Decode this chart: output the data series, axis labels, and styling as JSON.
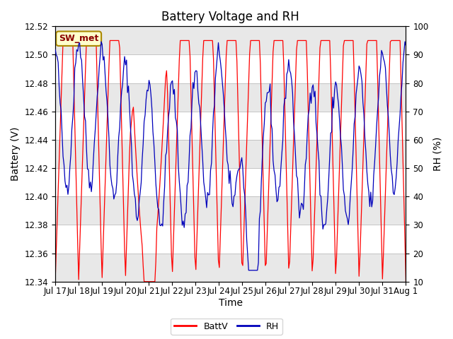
{
  "title": "Battery Voltage and RH",
  "xlabel": "Time",
  "ylabel_left": "Battery (V)",
  "ylabel_right": "RH (%)",
  "station_label": "SW_met",
  "ylim_left": [
    12.34,
    12.52
  ],
  "ylim_right": [
    10,
    100
  ],
  "yticks_left": [
    12.34,
    12.36,
    12.38,
    12.4,
    12.42,
    12.44,
    12.46,
    12.48,
    12.5,
    12.52
  ],
  "yticks_right": [
    10,
    20,
    30,
    40,
    50,
    60,
    70,
    80,
    90,
    100
  ],
  "x_tick_labels": [
    "Jul 17",
    "Jul 18",
    "Jul 19",
    "Jul 20",
    "Jul 21",
    "Jul 22",
    "Jul 23",
    "Jul 24",
    "Jul 25",
    "Jul 26",
    "Jul 27",
    "Jul 28",
    "Jul 29",
    "Jul 30",
    "Jul 31",
    "Aug 1"
  ],
  "color_batt": "#FF0000",
  "color_rh": "#0000BB",
  "color_bg": "#FFFFFF",
  "color_plot_bg_light": "#FFFFFF",
  "color_plot_bg_dark": "#E8E8E8",
  "color_station_bg": "#FFFFCC",
  "color_station_border": "#AA8800",
  "grid_color": "#CCCCCC",
  "title_fontsize": 12,
  "label_fontsize": 10,
  "tick_fontsize": 8.5,
  "n_days": 15,
  "seed": 42
}
